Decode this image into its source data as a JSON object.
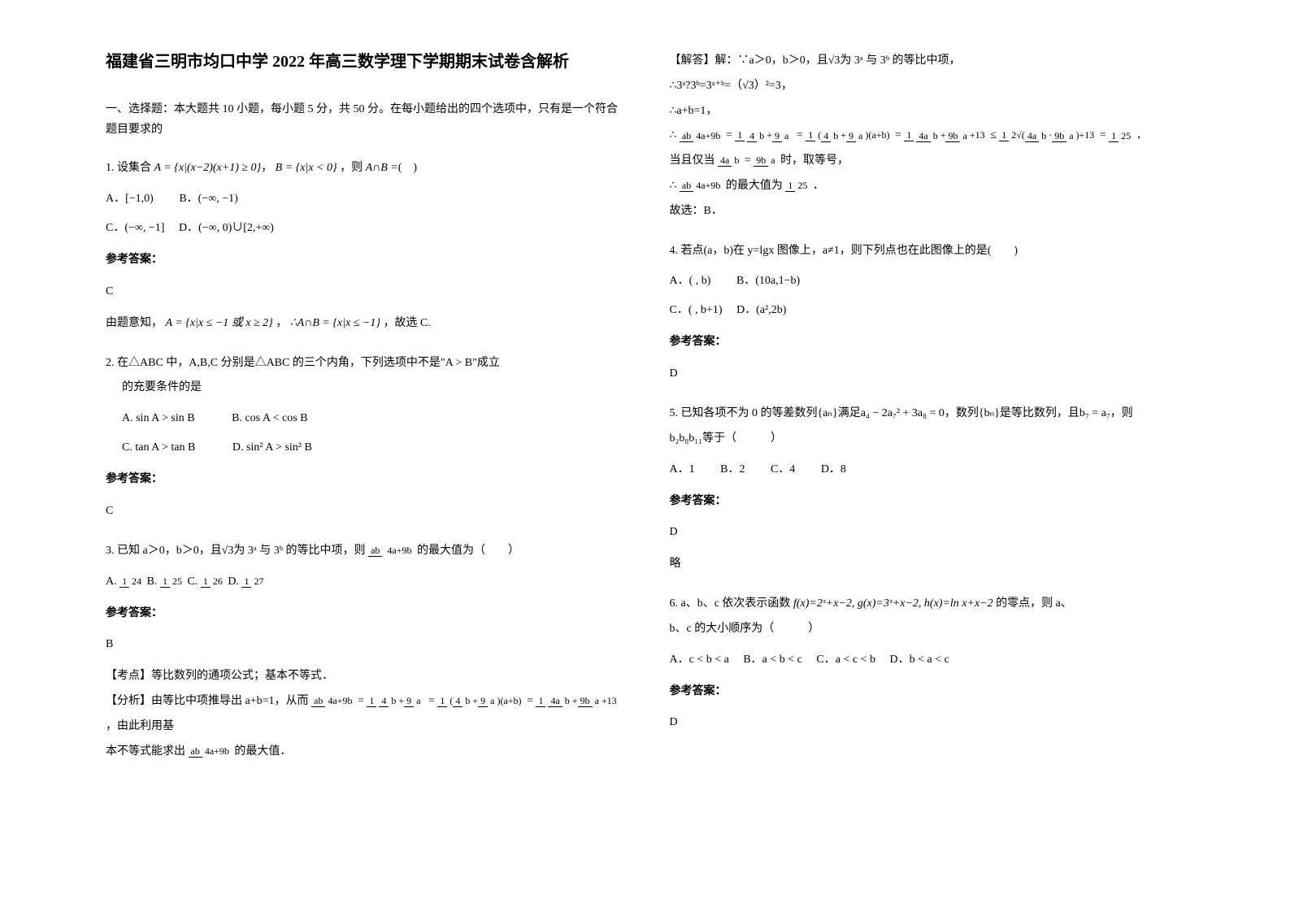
{
  "title": "福建省三明市均口中学 2022 年高三数学理下学期期末试卷含解析",
  "section_intro": "一、选择题：本大题共 10 小题，每小题 5 分，共 50 分。在每小题给出的四个选项中，只有是一个符合题目要求的",
  "q1": {
    "text_pre": "1. 设集合",
    "set_a": "A = {x|(x−2)(x+1) ≥ 0}",
    "set_b": "B = {x|x < 0}",
    "text_mid": "，则",
    "then": "A∩B =",
    "opt_a": "A．[−1,0)",
    "opt_b": "B．(−∞, −1)",
    "opt_c": "C．(−∞, −1]",
    "opt_d": "D．(−∞, 0)∪[2,+∞)",
    "answer_label": "参考答案：",
    "answer": "C",
    "explain_pre": "由题意知，",
    "explain_set": "A = {x|x ≤ −1 或 x ≥ 2}",
    "explain_mid": "，",
    "explain_result": "∴A∩B = {x|x ≤ −1}",
    "explain_end": "，故选 C."
  },
  "q2": {
    "text": "2. 在△ABC 中，A,B,C 分别是△ABC 的三个内角，下列选项中不是\"A > B\"成立",
    "text2": "的充要条件的是",
    "opt_a": "A. sin A > sin B",
    "opt_b": "B. cos A < cos B",
    "opt_c": "C. tan A > tan B",
    "opt_d": "D. sin² A > sin² B",
    "answer_label": "参考答案：",
    "answer": "C"
  },
  "q3": {
    "text": "3. 已知 a＞0，b＞0，且√3为 3ᵃ 与 3ᵇ 的等比中项，则",
    "frac_label": "ab",
    "frac_den": "4a+9b",
    "text_end": "的最大值为（　　）",
    "opt_a_pre": "A.",
    "opt_a_num": "1",
    "opt_a_den": "24",
    "opt_b_pre": "B.",
    "opt_b_num": "1",
    "opt_b_den": "25",
    "opt_c_pre": "C.",
    "opt_c_num": "1",
    "opt_c_den": "26",
    "opt_d_pre": "D.",
    "opt_d_num": "1",
    "opt_d_den": "27",
    "answer_label": "参考答案：",
    "answer": "B",
    "exam_point": "【考点】等比数列的通项公式；基本不等式．",
    "analysis": "【分析】由等比中项推导出 a+b=1，从而",
    "analysis_end": "，由此利用基",
    "analysis2": "本不等式能求出",
    "analysis2_end": "的最大值．"
  },
  "q3_solution": {
    "line1": "【解答】解：∵a＞0，b＞0，且√3为 3ᵃ 与 3ᵇ 的等比中项，",
    "line2": "∴3ᵃ?3ᵇ=3ᵃ⁺ᵇ=（√3）²=3，",
    "line3": "∴a+b=1，",
    "line4_pre": "∴",
    "line4_end": "．",
    "line5": "当且仅当",
    "line5_mid": "时，取等号，",
    "line6_pre": "∴",
    "line6_mid": "的最大值为",
    "line6_end": "．",
    "line7": "故选：B．"
  },
  "q4": {
    "text": "4. 若点(a，b)在 y=lgx 图像上，a≠1，则下列点也在此图像上的是(　　)",
    "opt_a": "A．( , b)",
    "opt_b": "B．(10a,1−b)",
    "opt_c": "C．( , b+1)",
    "opt_d": "D．(a²,2b)",
    "answer_label": "参考答案：",
    "answer": "D"
  },
  "q5": {
    "text": "5. 已知各项不为 0 的等差数列{aₙ}满足a₄ − 2a₇² + 3a₈ = 0，数列{bₙ}是等比数列，且b₇ = a₇，则",
    "text2": "b₂b₈b₁₁等于（　　　）",
    "opt_a": "A．1",
    "opt_b": "B．2",
    "opt_c": "C．4",
    "opt_d": "D．8",
    "answer_label": "参考答案：",
    "answer": "D",
    "brief": "略"
  },
  "q6": {
    "text_pre": "6. a、b、c 依次表示函数",
    "func": "f(x)=2ˣ+x−2, g(x)=3ˣ+x−2, h(x)=ln x+x−2",
    "text_mid": "的零点，则 a、",
    "text2": "b、c 的大小顺序为（　　　）",
    "opt_a": "A．c < b < a",
    "opt_b": "B．a < b < c",
    "opt_c": "C．a < c < b",
    "opt_d": "D．b < a < c",
    "answer_label": "参考答案：",
    "answer": "D"
  }
}
